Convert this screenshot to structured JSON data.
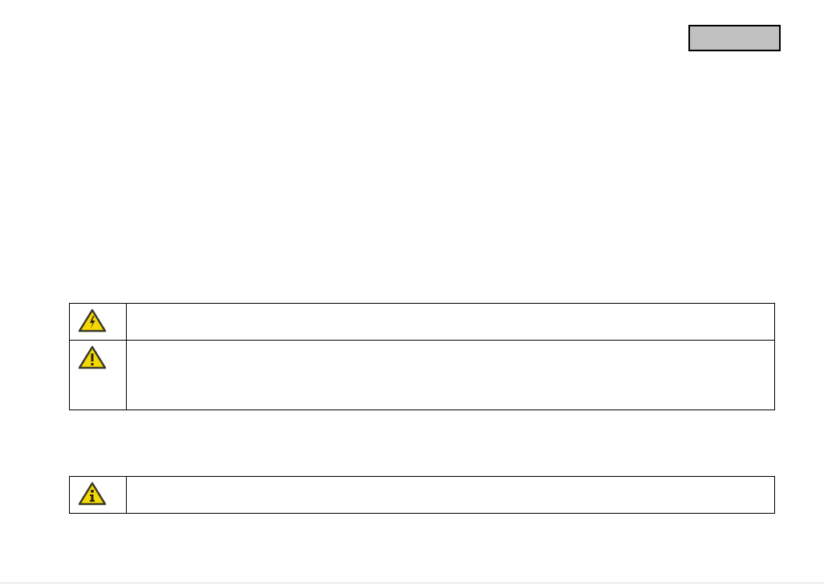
{
  "header": {
    "section_tab_color": "#c0c0c0"
  },
  "warnings": [
    {
      "icon": "high-voltage-warning-icon"
    },
    {
      "icon": "caution-warning-icon"
    }
  ],
  "notes": [
    {
      "icon": "information-icon"
    }
  ],
  "colors": {
    "icon_fill": "#f5d800",
    "icon_border": "#3a3a2a"
  }
}
